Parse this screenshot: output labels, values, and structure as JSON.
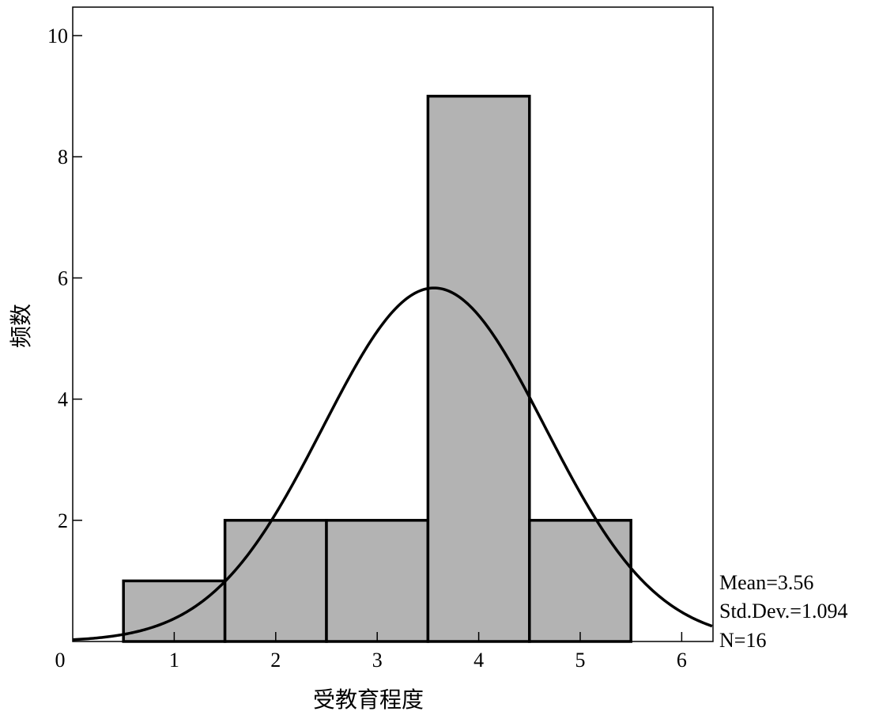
{
  "chart_data": {
    "type": "bar",
    "subtype": "histogram-with-normal-curve",
    "bins": [
      {
        "x0": 0.5,
        "x1": 1.5,
        "count": 1
      },
      {
        "x0": 1.5,
        "x1": 2.5,
        "count": 2
      },
      {
        "x0": 2.5,
        "x1": 3.5,
        "count": 2
      },
      {
        "x0": 3.5,
        "x1": 4.5,
        "count": 9
      },
      {
        "x0": 4.5,
        "x1": 5.5,
        "count": 2
      }
    ],
    "normal_curve": {
      "mean": 3.56,
      "std": 1.094,
      "n": 16,
      "bin_width": 1
    },
    "xlabel": "受教育程度",
    "ylabel": "频数",
    "xlim": [
      0,
      6.3
    ],
    "ylim": [
      0,
      10.5
    ],
    "x_ticks": [
      "1",
      "2",
      "3",
      "4",
      "5",
      "6"
    ],
    "y_ticks": [
      "2",
      "4",
      "6",
      "8",
      "10"
    ],
    "origin_label": "0",
    "stats": {
      "mean": "Mean=3.56",
      "std": "Std.Dev.=1.094",
      "n": "N=16"
    },
    "bar_fill": "#b3b3b3",
    "line_color": "#000000"
  }
}
